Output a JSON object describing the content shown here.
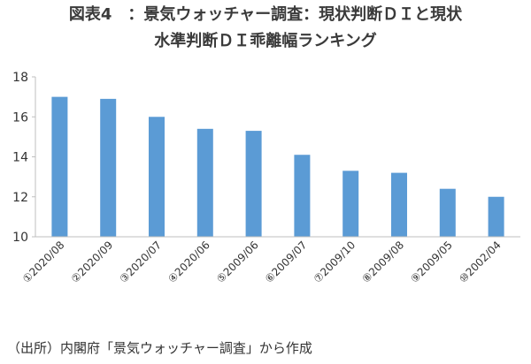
{
  "chart_data": {
    "type": "bar",
    "title_lines": [
      "図表4　：景気ウォッチャー調査：現状判断ＤＩと現状",
      "水準判断ＤＩ乖離幅ランキング"
    ],
    "categories": [
      "①2020/08",
      "②2020/09",
      "③2020/07",
      "④2020/06",
      "⑤2009/06",
      "⑥2009/07",
      "⑦2009/10",
      "⑧2009/08",
      "⑨2009/05",
      "⑩2002/04"
    ],
    "values": [
      17.0,
      16.9,
      16.0,
      15.4,
      15.3,
      14.1,
      13.3,
      13.2,
      12.4,
      12.0
    ],
    "ylim": [
      10,
      18
    ],
    "yticks": [
      10,
      12,
      14,
      16,
      18
    ],
    "grid": false,
    "legend": "none",
    "xlabel": "",
    "ylabel": "",
    "bar_color": "#5B9BD5",
    "axis_color": "#bfbfbf"
  },
  "source": "（出所）内閣府「景気ウォッチャー調査」から作成"
}
